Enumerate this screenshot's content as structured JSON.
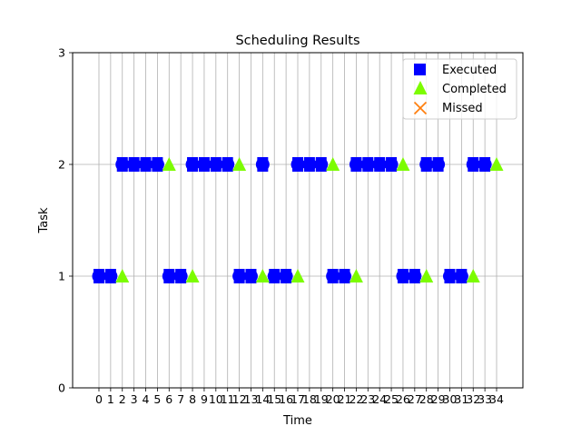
{
  "chart_data": {
    "type": "scatter",
    "title": "Scheduling Results",
    "xlabel": "Time",
    "ylabel": "Task",
    "xlim": [
      -2.25,
      36.25
    ],
    "ylim": [
      0,
      3
    ],
    "x_ticks": [
      0,
      1,
      2,
      3,
      4,
      5,
      6,
      7,
      8,
      9,
      10,
      11,
      12,
      13,
      14,
      15,
      16,
      17,
      18,
      19,
      20,
      21,
      22,
      23,
      24,
      25,
      26,
      27,
      28,
      29,
      30,
      31,
      32,
      33,
      34
    ],
    "y_ticks": [
      0,
      1,
      2,
      3
    ],
    "grid": true,
    "legend_position": "top-right",
    "series": [
      {
        "name": "Executed",
        "marker": "square",
        "color": "#0000ff",
        "points": [
          {
            "x": 0,
            "y": 1
          },
          {
            "x": 1,
            "y": 1
          },
          {
            "x": 2,
            "y": 2
          },
          {
            "x": 3,
            "y": 2
          },
          {
            "x": 4,
            "y": 2
          },
          {
            "x": 5,
            "y": 2
          },
          {
            "x": 6,
            "y": 1
          },
          {
            "x": 7,
            "y": 1
          },
          {
            "x": 8,
            "y": 2
          },
          {
            "x": 9,
            "y": 2
          },
          {
            "x": 10,
            "y": 2
          },
          {
            "x": 11,
            "y": 2
          },
          {
            "x": 12,
            "y": 1
          },
          {
            "x": 13,
            "y": 1
          },
          {
            "x": 14,
            "y": 2
          },
          {
            "x": 15,
            "y": 1
          },
          {
            "x": 16,
            "y": 1
          },
          {
            "x": 17,
            "y": 2
          },
          {
            "x": 18,
            "y": 2
          },
          {
            "x": 19,
            "y": 2
          },
          {
            "x": 20,
            "y": 1
          },
          {
            "x": 21,
            "y": 1
          },
          {
            "x": 22,
            "y": 2
          },
          {
            "x": 23,
            "y": 2
          },
          {
            "x": 24,
            "y": 2
          },
          {
            "x": 25,
            "y": 2
          },
          {
            "x": 26,
            "y": 1
          },
          {
            "x": 27,
            "y": 1
          },
          {
            "x": 28,
            "y": 2
          },
          {
            "x": 29,
            "y": 2
          },
          {
            "x": 30,
            "y": 1
          },
          {
            "x": 31,
            "y": 1
          },
          {
            "x": 32,
            "y": 2
          },
          {
            "x": 33,
            "y": 2
          }
        ]
      },
      {
        "name": "Completed",
        "marker": "triangle",
        "color": "#7cfc00",
        "points": [
          {
            "x": 2,
            "y": 1
          },
          {
            "x": 6,
            "y": 2
          },
          {
            "x": 8,
            "y": 1
          },
          {
            "x": 12,
            "y": 2
          },
          {
            "x": 14,
            "y": 1
          },
          {
            "x": 17,
            "y": 1
          },
          {
            "x": 20,
            "y": 2
          },
          {
            "x": 22,
            "y": 1
          },
          {
            "x": 26,
            "y": 2
          },
          {
            "x": 28,
            "y": 1
          },
          {
            "x": 32,
            "y": 1
          },
          {
            "x": 34,
            "y": 2
          }
        ]
      },
      {
        "name": "Missed",
        "marker": "x",
        "color": "#ff7f0e",
        "points": []
      }
    ]
  }
}
